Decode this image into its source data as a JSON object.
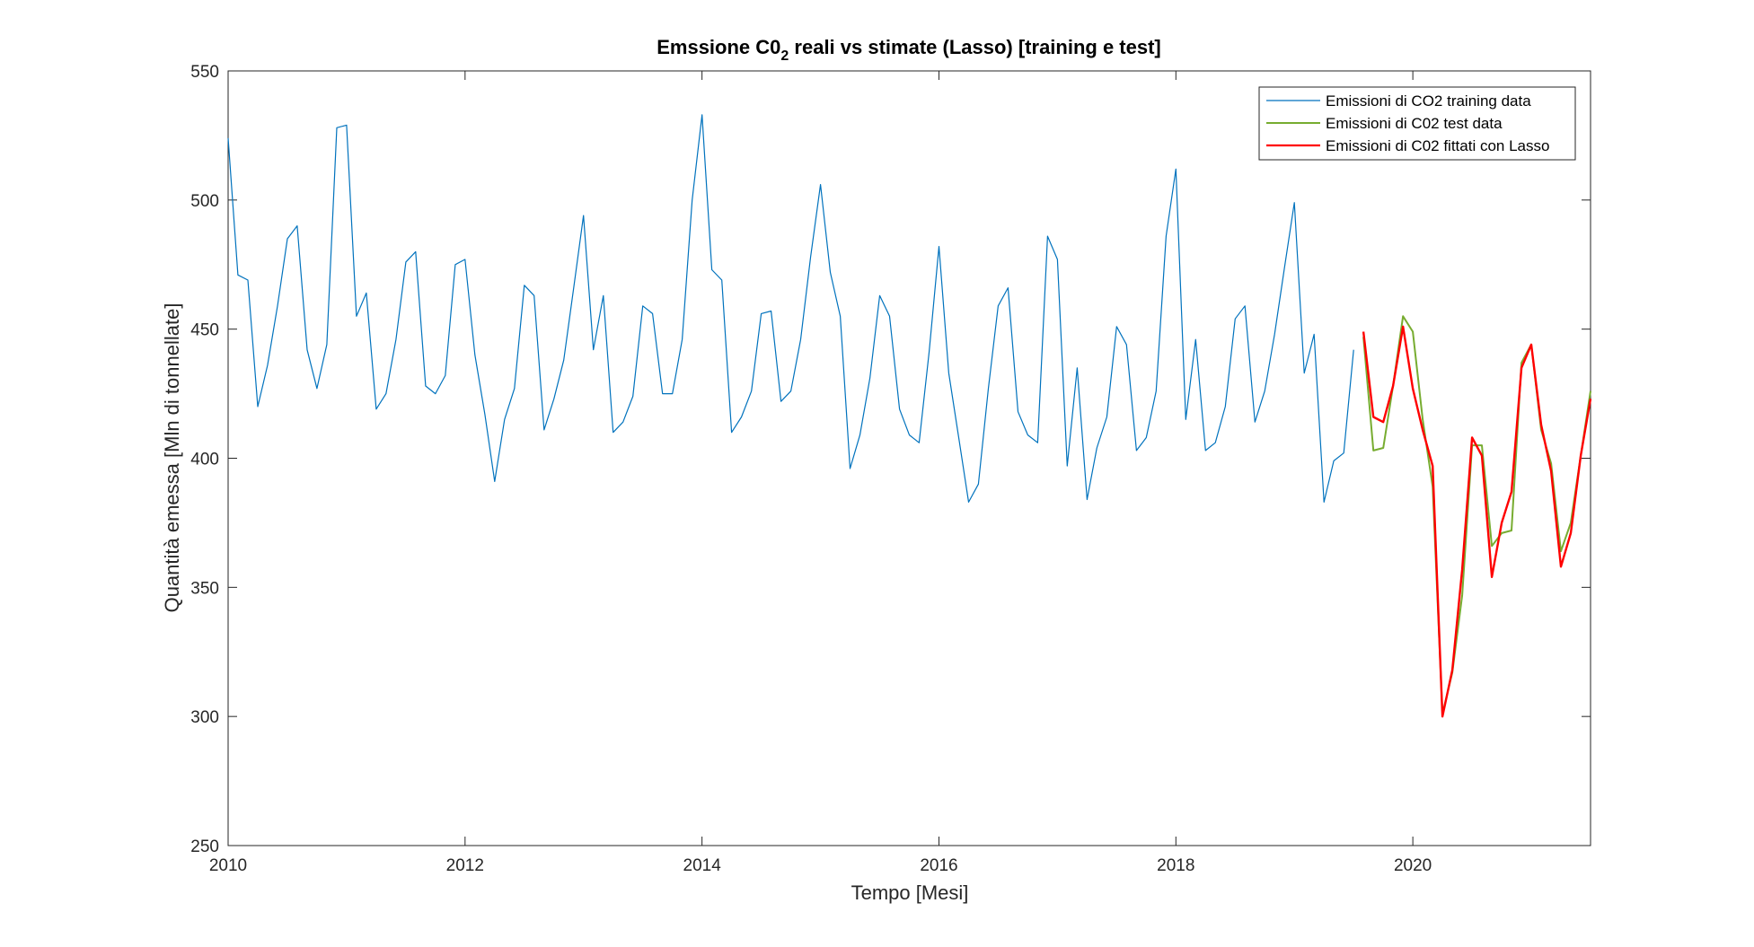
{
  "chart_data": {
    "type": "line",
    "title_main": "Emssione C0",
    "title_sub": "2",
    "title_rest": " reali vs stimate (Lasso) [training e test]",
    "xlabel": "Tempo [Mesi]",
    "ylabel": "Quantità emessa [Mln di tonnellate]",
    "xlim": [
      2010,
      2021.5
    ],
    "ylim": [
      250,
      550
    ],
    "xticks": [
      "2010",
      "2012",
      "2014",
      "2016",
      "2018",
      "2020"
    ],
    "yticks": [
      "250",
      "300",
      "350",
      "400",
      "450",
      "500",
      "550"
    ],
    "grid": false,
    "legend_position": "top-right",
    "colors": {
      "training": "#0072BD",
      "test": "#77AC30",
      "fitted": "#FF0000",
      "axis": "#262626"
    },
    "series": [
      {
        "name": "Emissioni di CO2 training data",
        "color": "#0072BD",
        "x": [
          2010.0,
          2010.083,
          2010.167,
          2010.25,
          2010.333,
          2010.417,
          2010.5,
          2010.583,
          2010.667,
          2010.75,
          2010.833,
          2010.917,
          2011.0,
          2011.083,
          2011.167,
          2011.25,
          2011.333,
          2011.417,
          2011.5,
          2011.583,
          2011.667,
          2011.75,
          2011.833,
          2011.917,
          2012.0,
          2012.083,
          2012.167,
          2012.25,
          2012.333,
          2012.417,
          2012.5,
          2012.583,
          2012.667,
          2012.75,
          2012.833,
          2012.917,
          2013.0,
          2013.083,
          2013.167,
          2013.25,
          2013.333,
          2013.417,
          2013.5,
          2013.583,
          2013.667,
          2013.75,
          2013.833,
          2013.917,
          2014.0,
          2014.083,
          2014.167,
          2014.25,
          2014.333,
          2014.417,
          2014.5,
          2014.583,
          2014.667,
          2014.75,
          2014.833,
          2014.917,
          2015.0,
          2015.083,
          2015.167,
          2015.25,
          2015.333,
          2015.417,
          2015.5,
          2015.583,
          2015.667,
          2015.75,
          2015.833,
          2015.917,
          2016.0,
          2016.083,
          2016.167,
          2016.25,
          2016.333,
          2016.417,
          2016.5,
          2016.583,
          2016.667,
          2016.75,
          2016.833,
          2016.917,
          2017.0,
          2017.083,
          2017.167,
          2017.25,
          2017.333,
          2017.417,
          2017.5,
          2017.583,
          2017.667,
          2017.75,
          2017.833,
          2017.917,
          2018.0,
          2018.083,
          2018.167,
          2018.25,
          2018.333,
          2018.417,
          2018.5,
          2018.583,
          2018.667,
          2018.75,
          2018.833,
          2018.917,
          2019.0,
          2019.083,
          2019.167,
          2019.25,
          2019.333,
          2019.417,
          2019.5
        ],
        "values": [
          524,
          471,
          469,
          420,
          436,
          459,
          485,
          490,
          442,
          427,
          444,
          528,
          529,
          455,
          464,
          419,
          425,
          446,
          476,
          480,
          428,
          425,
          432,
          475,
          477,
          440,
          417,
          391,
          415,
          427,
          467,
          463,
          411,
          423,
          438,
          466,
          494,
          442,
          463,
          410,
          414,
          424,
          459,
          456,
          425,
          425,
          446,
          500,
          533,
          473,
          469,
          410,
          416,
          426,
          456,
          457,
          422,
          426,
          446,
          478,
          506,
          472,
          455,
          396,
          409,
          431,
          463,
          455,
          419,
          409,
          406,
          441,
          482,
          433,
          408,
          383,
          390,
          427,
          459,
          466,
          418,
          409,
          406,
          486,
          477,
          397,
          435,
          384,
          404,
          416,
          451,
          444,
          403,
          408,
          426,
          486,
          512,
          415,
          446,
          403,
          406,
          420,
          454,
          459,
          414,
          426,
          448,
          474,
          499,
          433,
          448,
          383,
          399,
          402,
          442
        ]
      },
      {
        "name": "Emissioni di C02 test data",
        "color": "#77AC30",
        "x": [
          2019.583,
          2019.667,
          2019.75,
          2019.833,
          2019.917,
          2020.0,
          2020.083,
          2020.167,
          2020.25,
          2020.333,
          2020.417,
          2020.5,
          2020.583,
          2020.667,
          2020.75,
          2020.833,
          2020.917,
          2021.0,
          2021.083,
          2021.167,
          2021.25,
          2021.333,
          2021.417,
          2021.5
        ],
        "values": [
          447,
          403,
          404,
          428,
          455,
          449,
          415,
          389,
          301,
          317,
          347,
          405,
          405,
          366,
          371,
          372,
          437,
          444,
          411,
          398,
          364,
          375,
          401,
          426
        ]
      },
      {
        "name": "Emissioni di C02 fittati con Lasso",
        "color": "#FF0000",
        "x": [
          2019.583,
          2019.667,
          2019.75,
          2019.833,
          2019.917,
          2020.0,
          2020.083,
          2020.167,
          2020.25,
          2020.333,
          2020.417,
          2020.5,
          2020.583,
          2020.667,
          2020.75,
          2020.833,
          2020.917,
          2021.0,
          2021.083,
          2021.167,
          2021.25,
          2021.333,
          2021.417,
          2021.5
        ],
        "values": [
          449,
          416,
          414,
          428,
          451,
          427,
          411,
          397,
          300,
          318,
          357,
          408,
          401,
          354,
          375,
          387,
          435,
          444,
          413,
          395,
          358,
          371,
          401,
          423
        ]
      }
    ]
  }
}
